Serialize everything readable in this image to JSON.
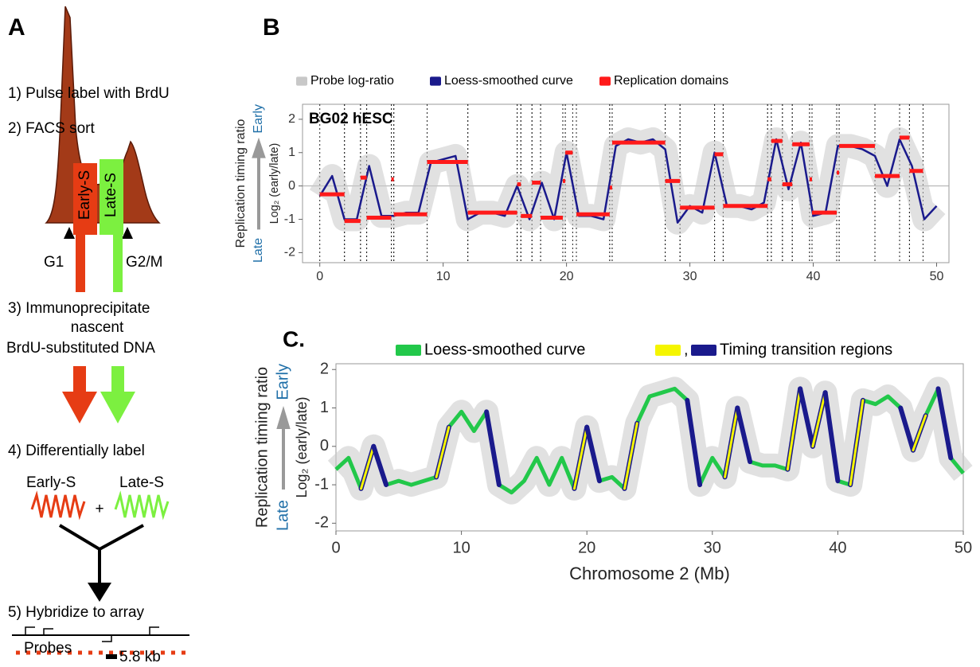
{
  "panel_a": {
    "label": "A",
    "step1": "1) Pulse label with BrdU",
    "step2": "2) FACS sort",
    "early_s": "Early-S",
    "late_s": "Late-S",
    "g1": "G1",
    "g2m": "G2/M",
    "step3": [
      "3) Immunoprecipitate",
      "nascent",
      "BrdU-substituted DNA"
    ],
    "step4": "4) Differentially label",
    "label_early": "Early-S",
    "label_late": "Late-S",
    "plus": "+",
    "step5": "5) Hybridize to array",
    "probes": "Probes",
    "scale": "5.8 kb"
  },
  "chart_data": [
    {
      "type": "line",
      "panel_label": "B",
      "annotation": "BG02 hESC",
      "ylabel": "Replication timing ratio",
      "ylabel_early": "Early",
      "ylabel_late": "Late",
      "ylabel_log": "Log₂ (early/late)",
      "legend": [
        {
          "name": "Probe log-ratio",
          "color": "#c8c8c8"
        },
        {
          "name": "Loess-smoothed curve",
          "color": "#1a1a8c"
        },
        {
          "name": "Replication domains",
          "color": "#ff1a1a"
        }
      ],
      "x": [
        0,
        1,
        2,
        3,
        4,
        5,
        6,
        7,
        8,
        9,
        10,
        11,
        12,
        13,
        14,
        15,
        16,
        17,
        18,
        19,
        20,
        21,
        22,
        23,
        24,
        25,
        26,
        27,
        28,
        29,
        30,
        31,
        32,
        33,
        34,
        35,
        36,
        37,
        38,
        39,
        40,
        41,
        42,
        43,
        44,
        45,
        46,
        47,
        48,
        49,
        50
      ],
      "series": [
        {
          "name": "Loess-smoothed curve",
          "color": "#1a1a8c",
          "values": [
            -0.3,
            0.3,
            -1.0,
            -1.0,
            0.6,
            -0.9,
            -0.9,
            -0.8,
            -0.8,
            0.7,
            0.8,
            0.9,
            -1.0,
            -0.8,
            -0.8,
            -0.9,
            0.0,
            -1.0,
            0.1,
            -1.0,
            1.0,
            -0.9,
            -0.9,
            -1.0,
            1.2,
            1.4,
            1.3,
            1.4,
            1.1,
            -1.1,
            -0.6,
            -0.8,
            1.0,
            -0.6,
            -0.6,
            -0.7,
            -0.5,
            1.4,
            -0.1,
            1.3,
            -0.9,
            -0.8,
            1.2,
            1.2,
            1.1,
            0.9,
            0.0,
            1.4,
            0.6,
            -1.0,
            -0.6
          ]
        }
      ],
      "domains": {
        "name": "Replication domains",
        "color": "#ff1a1a",
        "start": [
          0,
          2,
          3.3,
          3.8,
          5.8,
          6,
          8.7,
          12,
          16,
          16.3,
          17.2,
          17.9,
          19.7,
          19.9,
          20.8,
          23.5,
          23.7,
          28,
          29.2,
          32,
          32.7,
          36.3,
          36.6,
          37.5,
          38.3,
          39.7,
          39.9,
          41.9,
          42.1,
          45,
          47,
          47.8
        ],
        "end": [
          2,
          3.3,
          3.8,
          5.8,
          6,
          8.7,
          12,
          16,
          16.3,
          17.2,
          17.9,
          19.7,
          19.9,
          20.5,
          23.5,
          23.7,
          28,
          29.2,
          32,
          32.7,
          36.3,
          36.6,
          37.5,
          38.3,
          39.7,
          39.9,
          41.9,
          42.1,
          45,
          47,
          47.8,
          48.9
        ],
        "values": [
          -0.25,
          -1.05,
          0.25,
          -0.95,
          0.2,
          -0.85,
          0.72,
          -0.8,
          0.05,
          -0.9,
          0.1,
          -0.95,
          0.15,
          1.0,
          -0.85,
          -0.05,
          1.3,
          0.15,
          -0.65,
          0.95,
          -0.6,
          0.2,
          1.35,
          0.05,
          1.25,
          0.2,
          -0.8,
          0.4,
          1.2,
          0.3,
          1.45,
          0.45
        ]
      },
      "xlim": [
        -1.4,
        51
      ],
      "ylim": [
        -2.3,
        2.45
      ],
      "xticks": [
        0,
        10,
        20,
        30,
        40,
        50
      ],
      "yticks": [
        -2,
        -1,
        0,
        1,
        2
      ],
      "zero_line": true
    },
    {
      "type": "line",
      "panel_label": "C.",
      "xlabel": "Chromosome 2 (Mb)",
      "ylabel": "Replication timing ratio",
      "ylabel_early": "Early",
      "ylabel_late": "Late",
      "ylabel_log": "Log₂ (early/late)",
      "legend": [
        {
          "name": "Loess-smoothed curve",
          "color": "#22c84a"
        },
        {
          "name": ",",
          "color": "#f5f500"
        },
        {
          "name": "Timing transition regions",
          "color": "#1a1a8c"
        }
      ],
      "x": [
        0,
        1,
        2,
        3,
        4,
        5,
        6,
        7,
        8,
        9,
        10,
        11,
        12,
        13,
        14,
        15,
        16,
        17,
        18,
        19,
        20,
        21,
        22,
        23,
        24,
        25,
        26,
        27,
        28,
        29,
        30,
        31,
        32,
        33,
        34,
        35,
        36,
        37,
        38,
        39,
        40,
        41,
        42,
        43,
        44,
        45,
        46,
        47,
        48,
        49,
        50
      ],
      "series": [
        {
          "name": "Loess-smoothed curve",
          "color": "#22c84a",
          "values": [
            -0.6,
            -0.3,
            -1.1,
            0.0,
            -1.0,
            -0.9,
            -1.0,
            -0.9,
            -0.8,
            0.5,
            0.9,
            0.4,
            0.9,
            -1.0,
            -1.2,
            -0.9,
            -0.3,
            -1.0,
            -0.3,
            -1.1,
            0.5,
            -0.9,
            -0.8,
            -1.1,
            0.6,
            1.3,
            1.4,
            1.5,
            1.2,
            -1.0,
            -0.3,
            -0.8,
            1.0,
            -0.4,
            -0.5,
            -0.5,
            -0.6,
            1.5,
            0.0,
            1.4,
            -0.9,
            -1.0,
            1.2,
            1.1,
            1.3,
            1.0,
            -0.1,
            0.8,
            1.5,
            -0.3,
            -0.7
          ]
        }
      ],
      "xlim": [
        0,
        50
      ],
      "ylim": [
        -2.2,
        2.15
      ],
      "xticks": [
        0,
        10,
        20,
        30,
        40,
        50
      ],
      "yticks": [
        -2,
        -1,
        0,
        1,
        2
      ],
      "rising_color": "#f5f500",
      "falling_color": "#1a1a8c"
    }
  ]
}
